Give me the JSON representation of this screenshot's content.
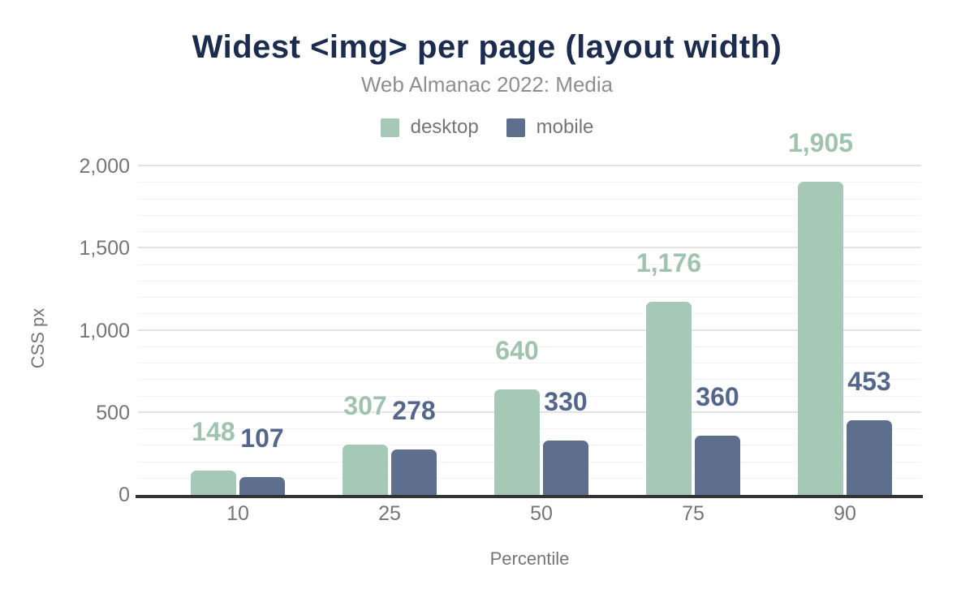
{
  "header": {
    "title": "Widest <img> per page (layout width)",
    "subtitle": "Web Almanac 2022: Media"
  },
  "legend": [
    {
      "label": "desktop",
      "color": "#a6c8b6"
    },
    {
      "label": "mobile",
      "color": "#5d6f8c"
    }
  ],
  "colors": {
    "title": "#1c2c4e",
    "axis_text": "#757575",
    "baseline": "#333333",
    "gridline_minor": "#f3f3f3",
    "gridline_major": "#e2e2e2",
    "desktop_label": "#9fc3af",
    "mobile_label": "#54678b"
  },
  "chart_data": {
    "type": "bar",
    "title": "Widest <img> per page (layout width)",
    "subtitle": "Web Almanac 2022: Media",
    "categories": [
      "10",
      "25",
      "50",
      "75",
      "90"
    ],
    "series": [
      {
        "name": "desktop",
        "color": "#a6c8b6",
        "label_color": "#9fc3af",
        "values": [
          148,
          307,
          640,
          1176,
          1905
        ],
        "labels": [
          "148",
          "307",
          "640",
          "1,176",
          "1,905"
        ]
      },
      {
        "name": "mobile",
        "color": "#5d6f8c",
        "label_color": "#54678b",
        "values": [
          107,
          278,
          330,
          360,
          453
        ],
        "labels": [
          "107",
          "278",
          "330",
          "360",
          "453"
        ]
      }
    ],
    "xlabel": "Percentile",
    "ylabel": "CSS px",
    "ylim": [
      0,
      2000
    ],
    "yticks": [
      0,
      500,
      1000,
      1500,
      2000
    ],
    "ytick_labels": [
      "0",
      "500",
      "1,000",
      "1,500",
      "2,000"
    ],
    "minor_gridline_step": 100,
    "major_gridline_step": 500,
    "grid": true,
    "legend_position": "top"
  }
}
